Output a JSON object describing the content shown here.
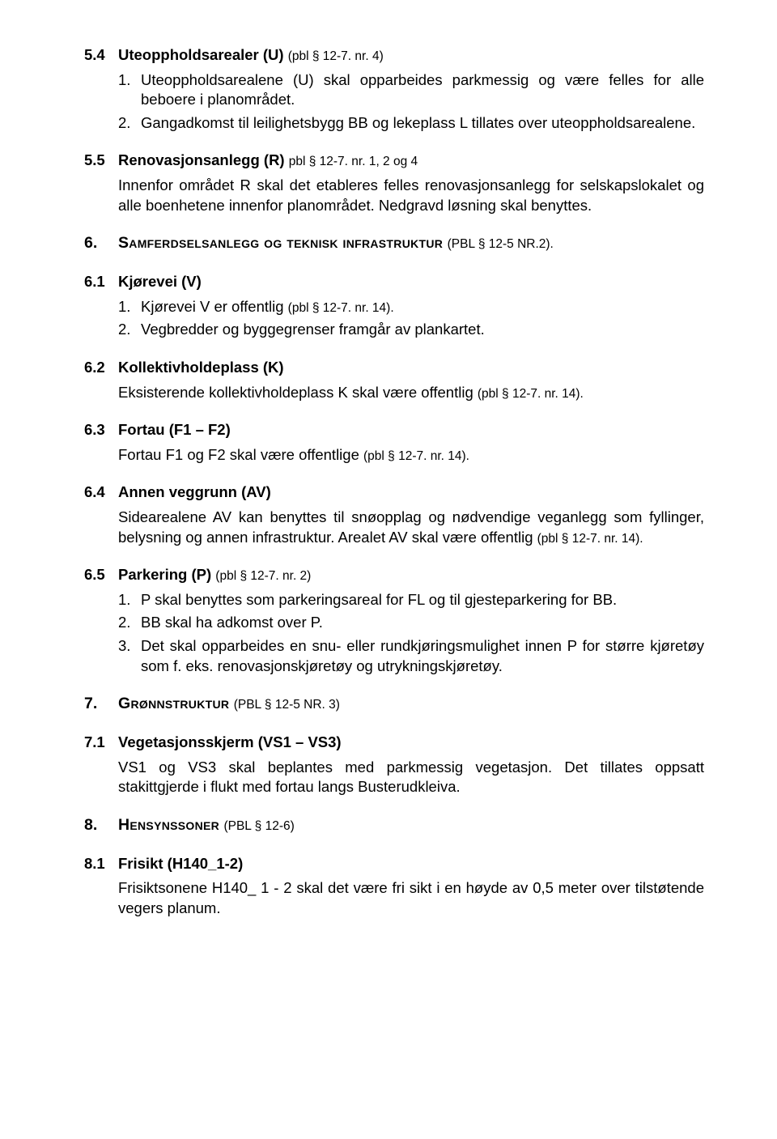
{
  "s54": {
    "num": "5.4",
    "title": "Uteoppholdsarealer (U)",
    "ref": "(pbl § 12-7. nr. 4)",
    "items": [
      {
        "n": "1.",
        "t": "Uteoppholdsarealene (U) skal opparbeides parkmessig og være felles for alle beboere i planområdet."
      },
      {
        "n": "2.",
        "t": "Gangadkomst til leilighetsbygg BB og lekeplass L tillates over uteoppholdsarealene."
      }
    ]
  },
  "s55": {
    "num": "5.5",
    "title": "Renovasjonsanlegg (R)",
    "ref": "pbl § 12-7. nr. 1, 2 og 4",
    "body": "Innenfor området R skal det etableres felles renovasjonsanlegg for selskapslokalet og alle boenhetene innenfor planområdet. Nedgravd løsning skal benyttes."
  },
  "s6": {
    "num": "6.",
    "title_sc": "Samferdselsanlegg og teknisk infrastruktur",
    "ref": "(PBL § 12-5 NR.2)."
  },
  "s61": {
    "num": "6.1",
    "title": "Kjørevei (V)",
    "items": [
      {
        "n": "1.",
        "t": "Kjørevei V er offentlig ",
        "ref": "(pbl § 12-7. nr. 14)."
      },
      {
        "n": "2.",
        "t": "Vegbredder og byggegrenser framgår av plankartet."
      }
    ]
  },
  "s62": {
    "num": "6.2",
    "title": "Kollektivholdeplass (K)",
    "body": "Eksisterende kollektivholdeplass K skal være offentlig ",
    "body_ref": "(pbl § 12-7. nr. 14)."
  },
  "s63": {
    "num": "6.3",
    "title": "Fortau (F1 – F2)",
    "body": "Fortau F1 og F2 skal være offentlige ",
    "body_ref": "(pbl § 12-7. nr. 14)."
  },
  "s64": {
    "num": "6.4",
    "title": "Annen veggrunn (AV)",
    "body_a": "Sidearealene AV kan benyttes til snøopplag og nødvendige veganlegg som fyllinger, belysning og annen infrastruktur. Arealet AV skal være offentlig ",
    "body_ref": "(pbl § 12-7. nr. 14)."
  },
  "s65": {
    "num": "6.5",
    "title": "Parkering (P)",
    "ref": "(pbl § 12-7. nr. 2)",
    "items": [
      {
        "n": "1.",
        "t": "P skal benyttes som parkeringsareal for FL og til gjesteparkering for BB."
      },
      {
        "n": "2.",
        "t": "BB skal ha adkomst over P."
      },
      {
        "n": "3.",
        "t": "Det skal opparbeides en snu- eller rundkjøringsmulighet innen P for større kjøretøy som f. eks. renovasjonskjøretøy og utrykningskjøretøy."
      }
    ]
  },
  "s7": {
    "num": "7.",
    "title_sc": "Grønnstruktur",
    "ref": "(PBL § 12-5 NR. 3)"
  },
  "s71": {
    "num": "7.1",
    "title": "Vegetasjonsskjerm (VS1 – VS3)",
    "body": "VS1 og VS3 skal beplantes med parkmessig vegetasjon. Det tillates oppsatt stakittgjerde i flukt med fortau langs Busterudkleiva."
  },
  "s8": {
    "num": "8.",
    "title_sc": "Hensynssoner",
    "ref": "(PBL § 12-6)"
  },
  "s81": {
    "num": "8.1",
    "title": "Frisikt (H140_1-2)",
    "body": "Frisiktsonene H140_ 1 - 2 skal det være fri sikt i en høyde av 0,5 meter over tilstøtende vegers planum."
  }
}
